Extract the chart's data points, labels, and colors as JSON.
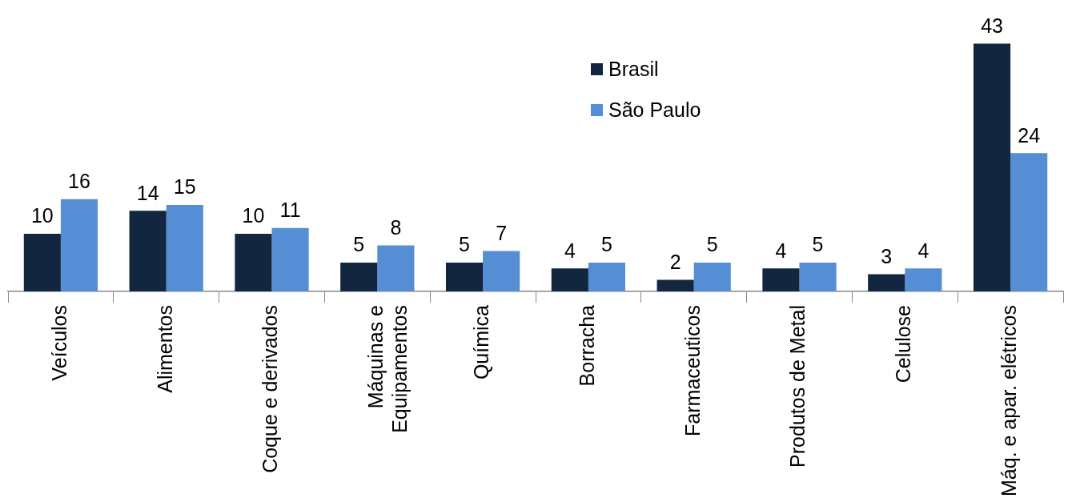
{
  "chart_data": {
    "type": "bar",
    "categories": [
      "Veículos",
      "Alimentos",
      "Coque e derivados",
      "Máquinas e Equipamentos",
      "Química",
      "Borracha",
      "Farmaceuticos",
      "Produtos de Metal",
      "Celulose",
      "Máq. e apar. elétricos"
    ],
    "series": [
      {
        "name": "Brasil",
        "color": "#12263f",
        "values": [
          10,
          14,
          10,
          5,
          5,
          4,
          2,
          4,
          3,
          43
        ]
      },
      {
        "name": "São Paulo",
        "color": "#558ed5",
        "values": [
          16,
          15,
          11,
          8,
          7,
          5,
          5,
          5,
          4,
          24
        ]
      }
    ],
    "data_labels": true,
    "legend": "top",
    "grid": false,
    "tick_labels": "x"
  }
}
